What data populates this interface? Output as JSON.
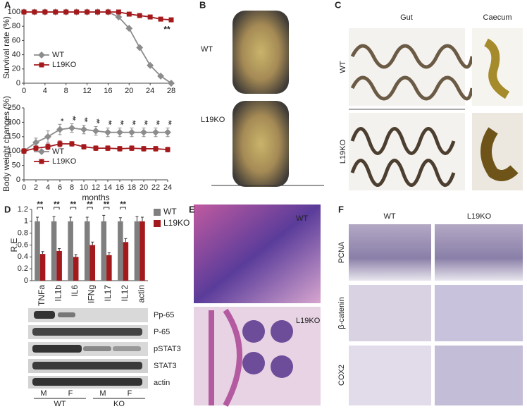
{
  "panel_labels": [
    "A",
    "B",
    "C",
    "D",
    "E",
    "F"
  ],
  "chart_data": [
    {
      "type": "line",
      "ylabel": "Survival rate (%)",
      "x": [
        0,
        2,
        4,
        6,
        8,
        10,
        12,
        14,
        16,
        18,
        20,
        22,
        24,
        26,
        28
      ],
      "xlim": [
        0,
        28
      ],
      "xticks": [
        0,
        4,
        8,
        12,
        16,
        20,
        24,
        28
      ],
      "ylim": [
        0,
        100
      ],
      "yticks": [
        0,
        20,
        40,
        60,
        80,
        100
      ],
      "legend": "lower left",
      "series": [
        {
          "name": "WT",
          "color": "#8c8c8c",
          "marker": "diamond",
          "values": [
            100,
            100,
            100,
            100,
            100,
            100,
            100,
            100,
            100,
            93,
            77,
            50,
            25,
            10,
            0
          ]
        },
        {
          "name": "L19KO",
          "color": "#a3191c",
          "marker": "square",
          "values": [
            100,
            100,
            100,
            100,
            100,
            100,
            100,
            100,
            100,
            100,
            97,
            95,
            93,
            90,
            89
          ]
        }
      ],
      "annotations": [
        {
          "x": 28,
          "text": "**"
        }
      ]
    },
    {
      "type": "line",
      "ylabel": "Body weight changes (%)",
      "xlabel": "months",
      "x": [
        0,
        2,
        4,
        6,
        8,
        10,
        12,
        14,
        16,
        18,
        20,
        22,
        24
      ],
      "xlim": [
        0,
        24
      ],
      "xticks": [
        0,
        2,
        4,
        6,
        8,
        10,
        12,
        14,
        16,
        18,
        20,
        22,
        24
      ],
      "ylim": [
        0,
        250
      ],
      "yticks": [
        0,
        50,
        100,
        150,
        200,
        250
      ],
      "legend": "lower left",
      "series": [
        {
          "name": "WT",
          "color": "#8c8c8c",
          "marker": "diamond",
          "values": [
            100,
            130,
            150,
            175,
            180,
            175,
            170,
            165,
            165,
            165,
            165,
            165,
            165
          ],
          "errors": [
            8,
            15,
            20,
            18,
            15,
            15,
            15,
            15,
            15,
            15,
            15,
            15,
            15
          ]
        },
        {
          "name": "L19KO",
          "color": "#a3191c",
          "marker": "square",
          "values": [
            100,
            110,
            115,
            125,
            125,
            115,
            110,
            110,
            108,
            110,
            108,
            108,
            105
          ],
          "errors": [
            8,
            8,
            10,
            10,
            8,
            8,
            8,
            8,
            8,
            8,
            8,
            8,
            8
          ]
        }
      ],
      "annotations": [
        {
          "x": 6,
          "text": "*"
        },
        {
          "x": 8,
          "text": "**"
        },
        {
          "x": 10,
          "text": "**"
        },
        {
          "x": 12,
          "text": "**"
        },
        {
          "x": 14,
          "text": "**"
        },
        {
          "x": 16,
          "text": "**"
        },
        {
          "x": 18,
          "text": "**"
        },
        {
          "x": 20,
          "text": "**"
        },
        {
          "x": 22,
          "text": "**"
        },
        {
          "x": 24,
          "text": "**"
        }
      ]
    },
    {
      "type": "bar",
      "ylabel": "R.E",
      "categories": [
        "TNFa",
        "IL1b",
        "IL6",
        "IFNg",
        "IL17",
        "IL12",
        "actin"
      ],
      "ylim": [
        0,
        1.2
      ],
      "yticks": [
        0,
        0.2,
        0.4,
        0.6,
        0.8,
        1,
        1.2
      ],
      "legend": "right",
      "series": [
        {
          "name": "WT",
          "color": "#7f7f7f",
          "values": [
            1,
            1,
            1,
            1,
            1,
            1,
            1
          ],
          "errors": [
            0.07,
            0.08,
            0.07,
            0.07,
            0.1,
            0.06,
            0.08
          ]
        },
        {
          "name": "L19KO",
          "color": "#a3191c",
          "values": [
            0.45,
            0.5,
            0.4,
            0.6,
            0.43,
            0.65,
            1
          ],
          "errors": [
            0.04,
            0.04,
            0.04,
            0.05,
            0.04,
            0.06,
            0.07
          ]
        }
      ],
      "significance": [
        "**",
        "**",
        "**",
        "**",
        "**",
        "**",
        null
      ]
    }
  ],
  "panel_b": {
    "labels": [
      "WT",
      "L19KO"
    ]
  },
  "panel_c": {
    "columns": [
      "Gut",
      "Caecum"
    ],
    "rows": [
      "WT",
      "L19KO"
    ]
  },
  "blot": {
    "bands": [
      "Pp-65",
      "P-65",
      "pSTAT3",
      "STAT3",
      "actin"
    ],
    "lanes": [
      "M",
      "F",
      "M",
      "F"
    ],
    "groups": [
      "WT",
      "KO"
    ]
  },
  "panel_e": {
    "labels": [
      "WT",
      "L19KO"
    ]
  },
  "panel_f": {
    "columns": [
      "WT",
      "L19KO"
    ],
    "rows": [
      "PCNA",
      "β-catenin",
      "COX2"
    ]
  }
}
